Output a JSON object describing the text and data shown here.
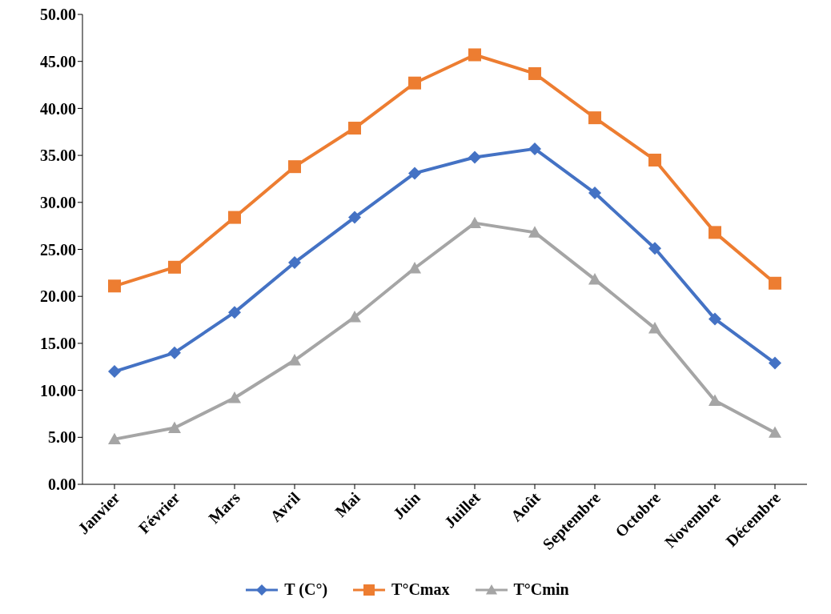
{
  "chart_data": {
    "type": "line",
    "categories": [
      "Janvier",
      "Février",
      "Mars",
      "Avril",
      "Mai",
      "Juin",
      "Juillet",
      "Août",
      "Septembre",
      "Octobre",
      "Novembre",
      "Décembre"
    ],
    "series": [
      {
        "name": "T  (C°)",
        "color": "#4472c4",
        "marker": "diamond",
        "values": [
          12.0,
          14.0,
          18.3,
          23.6,
          28.4,
          33.1,
          34.8,
          35.7,
          31.0,
          25.1,
          17.6,
          12.9
        ]
      },
      {
        "name": "T°Cmax",
        "color": "#ed7d31",
        "marker": "square",
        "values": [
          21.1,
          23.1,
          28.4,
          33.8,
          37.9,
          42.7,
          45.7,
          43.7,
          39.0,
          34.5,
          26.8,
          21.4
        ]
      },
      {
        "name": "T°Cmin",
        "color": "#a5a5a5",
        "marker": "triangle",
        "values": [
          4.8,
          6.0,
          9.2,
          13.2,
          17.8,
          23.0,
          27.8,
          26.8,
          21.8,
          16.6,
          8.9,
          5.5
        ]
      }
    ],
    "ylim": [
      0,
      50
    ],
    "yticks": [
      {
        "value": 0,
        "label": "0.00"
      },
      {
        "value": 5,
        "label": "5.00"
      },
      {
        "value": 10,
        "label": "10.00"
      },
      {
        "value": 15,
        "label": "15.00"
      },
      {
        "value": 20,
        "label": "20.00"
      },
      {
        "value": 25,
        "label": "25.00"
      },
      {
        "value": 30,
        "label": "30.00"
      },
      {
        "value": 35,
        "label": "35.00"
      },
      {
        "value": 40,
        "label": "40.00"
      },
      {
        "value": 45,
        "label": "45.00"
      },
      {
        "value": 50,
        "label": "50.00"
      }
    ],
    "grid": false,
    "legend": "bottom",
    "line_style": "solid"
  }
}
